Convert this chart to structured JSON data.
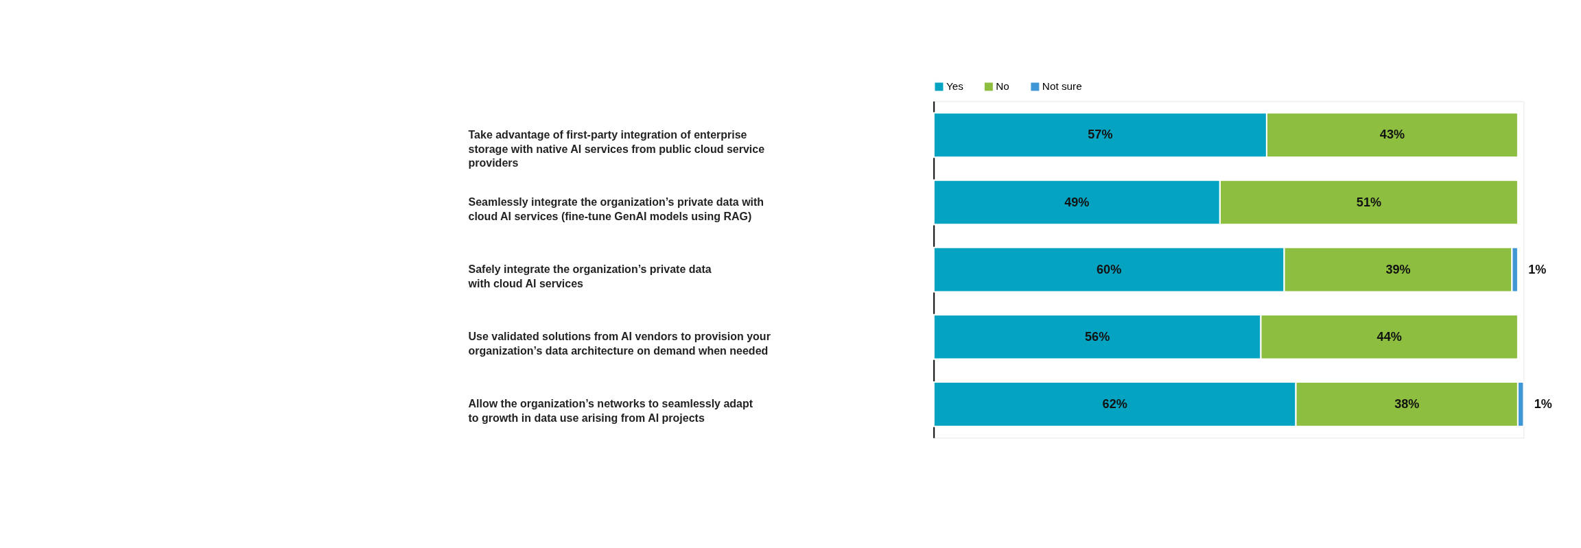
{
  "chart_data": {
    "type": "bar",
    "orientation": "horizontal",
    "stacked": true,
    "legend": "top",
    "categories": [
      "Take advantage of first-party integration of enterprise storage with native AI services from public cloud service providers",
      "Seamlessly integrate the organization’s private data with cloud AI services (fine-tune GenAI models using RAG)",
      "Safely integrate the organization’s private data with cloud AI services",
      "Use validated solutions from AI vendors to provision your organization’s data architecture on demand when needed",
      "Allow the organization’s networks to seamlessly adapt to growth in data use arising from AI projects"
    ],
    "series": [
      {
        "name": "Yes",
        "color": "#05a3c2",
        "values": [
          57,
          49,
          60,
          56,
          62
        ],
        "value_labels": [
          "57%",
          "49%",
          "60%",
          "56%",
          "62%"
        ]
      },
      {
        "name": "No",
        "color": "#8dbe3f",
        "values": [
          43,
          51,
          39,
          44,
          38
        ],
        "value_labels": [
          "43%",
          "51%",
          "39%",
          "44%",
          "38%"
        ]
      },
      {
        "name": "Not sure",
        "color": "#3f97d5",
        "values": [
          null,
          null,
          1,
          null,
          1
        ],
        "value_labels": [
          null,
          null,
          "1%",
          null,
          "1%"
        ]
      }
    ]
  }
}
